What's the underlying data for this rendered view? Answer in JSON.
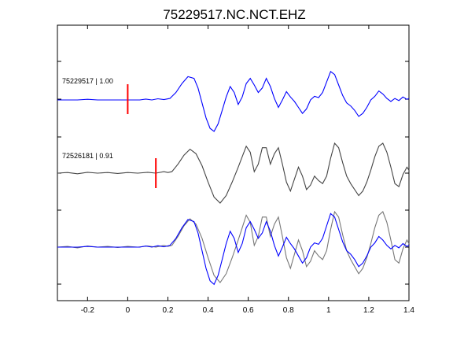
{
  "chart_data": {
    "type": "line",
    "title": "75229517.NC.NCT.EHZ",
    "xlabel": "",
    "ylabel": "",
    "xlim": [
      -0.35,
      1.4
    ],
    "xticks": [
      -0.2,
      0,
      0.2,
      0.4,
      0.6,
      0.8,
      1,
      1.2,
      1.4
    ],
    "xtick_labels": [
      "-0.2",
      "0",
      "0.2",
      "0.4",
      "0.6",
      "0.8",
      "1",
      "1.2",
      "1.4"
    ],
    "grid": false,
    "legend": "none",
    "traces": [
      {
        "label": "75229517 | 1.00",
        "color": "#0000ff",
        "pick_time": 0.0,
        "x": [
          -0.35,
          -0.3,
          -0.25,
          -0.2,
          -0.15,
          -0.1,
          -0.05,
          0,
          0.03,
          0.06,
          0.09,
          0.12,
          0.15,
          0.18,
          0.21,
          0.24,
          0.27,
          0.3,
          0.33,
          0.35,
          0.37,
          0.39,
          0.41,
          0.43,
          0.45,
          0.47,
          0.49,
          0.51,
          0.53,
          0.55,
          0.57,
          0.59,
          0.61,
          0.63,
          0.65,
          0.67,
          0.69,
          0.71,
          0.73,
          0.75,
          0.77,
          0.79,
          0.81,
          0.83,
          0.85,
          0.87,
          0.89,
          0.91,
          0.93,
          0.95,
          0.97,
          0.99,
          1.01,
          1.03,
          1.05,
          1.07,
          1.09,
          1.11,
          1.13,
          1.15,
          1.17,
          1.19,
          1.21,
          1.23,
          1.25,
          1.27,
          1.29,
          1.31,
          1.33,
          1.35,
          1.37,
          1.39,
          1.4
        ],
        "y": [
          0,
          0,
          0,
          0.02,
          0,
          0,
          0,
          0,
          0,
          0,
          0.03,
          0,
          0.04,
          0.01,
          0.05,
          0.25,
          0.55,
          0.78,
          0.72,
          0.4,
          -0.1,
          -0.6,
          -0.95,
          -1.05,
          -0.8,
          -0.35,
          0.1,
          0.45,
          0.25,
          -0.15,
          0.1,
          0.55,
          0.72,
          0.5,
          0.25,
          0.4,
          0.72,
          0.45,
          0.05,
          -0.25,
          0,
          0.28,
          0.1,
          -0.05,
          -0.25,
          -0.45,
          -0.3,
          0,
          0.12,
          0.08,
          0.25,
          0.6,
          0.95,
          0.85,
          0.5,
          0.15,
          -0.1,
          -0.2,
          -0.35,
          -0.55,
          -0.45,
          -0.25,
          0,
          0.12,
          0.3,
          0.2,
          0.05,
          -0.05,
          0.05,
          -0.02,
          0.1,
          0.02,
          0.05
        ]
      },
      {
        "label": "72526181 | 0.91",
        "color": "#444444",
        "pick_time": 0.14,
        "x": [
          -0.35,
          -0.3,
          -0.25,
          -0.2,
          -0.15,
          -0.1,
          -0.05,
          0,
          0.05,
          0.1,
          0.14,
          0.18,
          0.2,
          0.22,
          0.25,
          0.28,
          0.31,
          0.34,
          0.37,
          0.4,
          0.43,
          0.46,
          0.49,
          0.52,
          0.55,
          0.57,
          0.59,
          0.61,
          0.63,
          0.65,
          0.67,
          0.69,
          0.71,
          0.73,
          0.75,
          0.77,
          0.79,
          0.81,
          0.83,
          0.85,
          0.87,
          0.89,
          0.91,
          0.93,
          0.95,
          0.97,
          0.99,
          1.01,
          1.03,
          1.05,
          1.07,
          1.09,
          1.11,
          1.13,
          1.15,
          1.17,
          1.19,
          1.21,
          1.23,
          1.25,
          1.27,
          1.29,
          1.31,
          1.33,
          1.35,
          1.37,
          1.39,
          1.4
        ],
        "y": [
          0,
          0.02,
          -0.02,
          0.03,
          0,
          0.02,
          -0.01,
          0.02,
          0,
          0.03,
          0,
          0.05,
          0.02,
          0.05,
          0.3,
          0.6,
          0.8,
          0.65,
          0.25,
          -0.3,
          -0.8,
          -1.0,
          -0.75,
          -0.3,
          0.2,
          0.55,
          0.9,
          0.7,
          0.05,
          0.3,
          0.85,
          0.85,
          0.3,
          0.65,
          0.85,
          0.3,
          -0.3,
          -0.6,
          -0.2,
          0.2,
          -0.1,
          -0.55,
          -0.4,
          -0.1,
          -0.25,
          -0.35,
          -0.1,
          0.5,
          1.0,
          0.85,
          0.35,
          -0.1,
          -0.35,
          -0.55,
          -0.75,
          -0.6,
          -0.3,
          0.1,
          0.55,
          0.9,
          1.0,
          0.7,
          0.2,
          -0.35,
          -0.45,
          -0.05,
          0.2,
          0.1
        ]
      }
    ]
  }
}
